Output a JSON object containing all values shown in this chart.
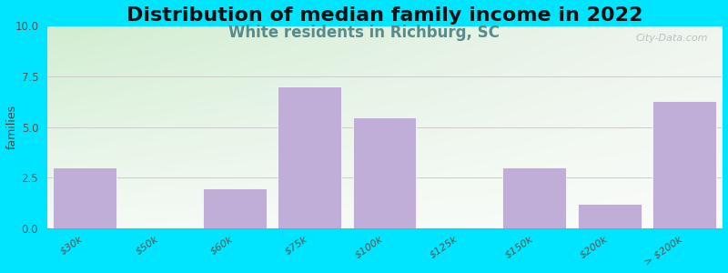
{
  "title": "Distribution of median family income in 2022",
  "subtitle": "White residents in Richburg, SC",
  "categories": [
    "$30k",
    "$50k",
    "$60k",
    "$75k",
    "$100k",
    "$125k",
    "$150k",
    "$200k",
    "> $200k"
  ],
  "values": [
    3.0,
    0,
    2.0,
    7.0,
    5.5,
    0,
    3.0,
    1.2,
    6.3
  ],
  "bar_color": "#c0aed8",
  "bar_edge_color": "#c0aed8",
  "bg_color_top_left": "#d6ecd4",
  "bg_color_top_right": "#f0f0f0",
  "bg_color_bottom": "#f5f5f5",
  "figure_bg": "#00e5ff",
  "ylabel": "families",
  "ylim": [
    0,
    10
  ],
  "yticks": [
    0,
    2.5,
    5,
    7.5,
    10
  ],
  "title_fontsize": 16,
  "subtitle_fontsize": 12,
  "subtitle_color": "#5a8a8a",
  "watermark": "City-Data.com",
  "watermark_color": "#b0b8b8"
}
